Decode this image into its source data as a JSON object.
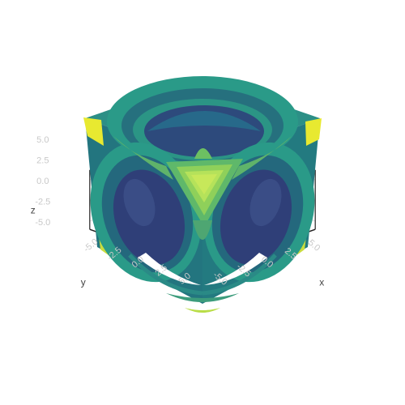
{
  "chart_data": {
    "type": "isosurface-3d",
    "colorscale": "viridis",
    "colors": {
      "dark": "#30407a",
      "mid_dark": "#27597e",
      "mid": "#1f8b84",
      "mid_light": "#39a877",
      "light": "#7ccb57",
      "bright": "#c9e24a",
      "yellow": "#f0e92b",
      "axis_line": "#222222",
      "grid": "#e3e3e3",
      "tick_text": "#c8c8c8"
    },
    "axes": {
      "x": {
        "title": "x",
        "range": [
          -6,
          6
        ],
        "ticks": [
          "-5.0",
          "-2.5",
          "0.0",
          "2.5",
          "5.0"
        ]
      },
      "y": {
        "title": "y",
        "range": [
          -6,
          6
        ],
        "ticks": [
          "-5.0",
          "-2.5",
          "0.0",
          "2.5",
          "5.0"
        ]
      },
      "z": {
        "title": "z",
        "range": [
          -6,
          6
        ],
        "ticks": [
          "-5.0",
          "-2.5",
          "0.0",
          "2.5",
          "5.0"
        ]
      }
    },
    "grid": true,
    "legend": "none"
  }
}
